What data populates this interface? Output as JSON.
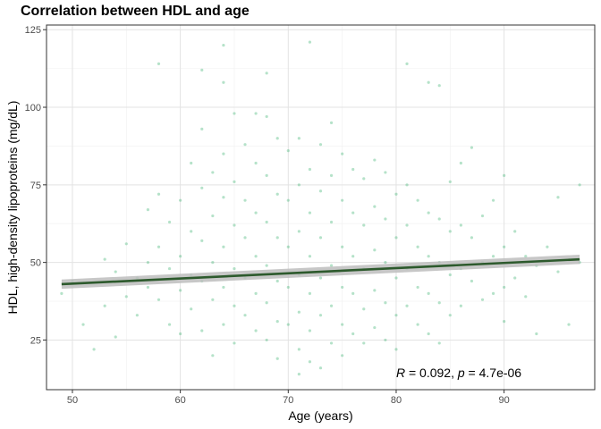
{
  "chart_data": {
    "type": "scatter",
    "title": "Correlation between HDL and age",
    "xlabel": "Age (years)",
    "ylabel": "HDL, high-density lipoproteins (mg/dL)",
    "xlim": [
      47.6,
      98.4
    ],
    "ylim": [
      9.0,
      126.5
    ],
    "x_ticks": [
      50,
      60,
      70,
      80,
      90
    ],
    "y_ticks": [
      25,
      50,
      75,
      100,
      125
    ],
    "grid": true,
    "point_color": "#3cb371",
    "line_color": "#2d5a2d",
    "band_color": "#bdbdbd",
    "regression": {
      "x": [
        49,
        97
      ],
      "y": [
        43.0,
        51.0
      ],
      "ci_low": [
        41.5,
        49.5
      ],
      "ci_high": [
        44.5,
        52.5
      ]
    },
    "annotation": {
      "r_symbol": "R",
      "r_text": " = 0.092, ",
      "p_symbol": "p",
      "p_text": " = 4.7e-06",
      "x": 80,
      "y": 14.5
    },
    "points": [
      [
        49,
        40
      ],
      [
        50,
        44
      ],
      [
        51,
        30
      ],
      [
        52,
        22
      ],
      [
        53,
        51
      ],
      [
        53,
        36
      ],
      [
        54,
        26
      ],
      [
        54,
        47
      ],
      [
        55,
        56
      ],
      [
        55,
        39
      ],
      [
        56,
        45
      ],
      [
        56,
        33
      ],
      [
        57,
        67
      ],
      [
        57,
        50
      ],
      [
        57,
        42
      ],
      [
        58,
        114
      ],
      [
        58,
        72
      ],
      [
        58,
        55
      ],
      [
        58,
        38
      ],
      [
        59,
        63
      ],
      [
        59,
        48
      ],
      [
        59,
        30
      ],
      [
        60,
        70
      ],
      [
        60,
        52
      ],
      [
        60,
        41
      ],
      [
        60,
        27
      ],
      [
        61,
        82
      ],
      [
        61,
        60
      ],
      [
        61,
        46
      ],
      [
        61,
        35
      ],
      [
        62,
        112
      ],
      [
        62,
        93
      ],
      [
        62,
        74
      ],
      [
        62,
        57
      ],
      [
        62,
        44
      ],
      [
        62,
        28
      ],
      [
        63,
        79
      ],
      [
        63,
        65
      ],
      [
        63,
        50
      ],
      [
        63,
        38
      ],
      [
        63,
        20
      ],
      [
        64,
        120
      ],
      [
        64,
        108
      ],
      [
        64,
        85
      ],
      [
        64,
        71
      ],
      [
        64,
        55
      ],
      [
        64,
        42
      ],
      [
        64,
        30
      ],
      [
        65,
        98
      ],
      [
        65,
        76
      ],
      [
        65,
        62
      ],
      [
        65,
        48
      ],
      [
        65,
        36
      ],
      [
        65,
        24
      ],
      [
        66,
        88
      ],
      [
        66,
        70
      ],
      [
        66,
        58
      ],
      [
        66,
        45
      ],
      [
        66,
        33
      ],
      [
        67,
        98
      ],
      [
        67,
        82
      ],
      [
        67,
        66
      ],
      [
        67,
        52
      ],
      [
        67,
        40
      ],
      [
        67,
        28
      ],
      [
        68,
        111
      ],
      [
        68,
        97
      ],
      [
        68,
        78
      ],
      [
        68,
        63
      ],
      [
        68,
        49
      ],
      [
        68,
        37
      ],
      [
        68,
        25
      ],
      [
        69,
        90
      ],
      [
        69,
        72
      ],
      [
        69,
        58
      ],
      [
        69,
        44
      ],
      [
        69,
        31
      ],
      [
        69,
        19
      ],
      [
        70,
        86
      ],
      [
        70,
        70
      ],
      [
        70,
        55
      ],
      [
        70,
        42
      ],
      [
        70,
        30
      ],
      [
        71,
        14
      ],
      [
        71,
        90
      ],
      [
        71,
        75
      ],
      [
        71,
        60
      ],
      [
        71,
        46
      ],
      [
        71,
        34
      ],
      [
        71,
        22
      ],
      [
        72,
        121
      ],
      [
        72,
        80
      ],
      [
        72,
        66
      ],
      [
        72,
        52
      ],
      [
        72,
        40
      ],
      [
        72,
        28
      ],
      [
        72,
        18
      ],
      [
        73,
        88
      ],
      [
        73,
        73
      ],
      [
        73,
        58
      ],
      [
        73,
        45
      ],
      [
        73,
        33
      ],
      [
        73,
        16
      ],
      [
        74,
        95
      ],
      [
        74,
        78
      ],
      [
        74,
        63
      ],
      [
        74,
        49
      ],
      [
        74,
        36
      ],
      [
        74,
        24
      ],
      [
        75,
        85
      ],
      [
        75,
        70
      ],
      [
        75,
        55
      ],
      [
        75,
        42
      ],
      [
        75,
        30
      ],
      [
        75,
        20
      ],
      [
        76,
        80
      ],
      [
        76,
        66
      ],
      [
        76,
        52
      ],
      [
        76,
        40
      ],
      [
        76,
        27
      ],
      [
        77,
        77
      ],
      [
        77,
        62
      ],
      [
        77,
        48
      ],
      [
        77,
        35
      ],
      [
        77,
        24
      ],
      [
        78,
        83
      ],
      [
        78,
        68
      ],
      [
        78,
        54
      ],
      [
        78,
        41
      ],
      [
        78,
        29
      ],
      [
        79,
        79
      ],
      [
        79,
        64
      ],
      [
        79,
        50
      ],
      [
        79,
        37
      ],
      [
        79,
        25
      ],
      [
        80,
        72
      ],
      [
        80,
        58
      ],
      [
        80,
        45
      ],
      [
        80,
        33
      ],
      [
        80,
        22
      ],
      [
        81,
        114
      ],
      [
        81,
        75
      ],
      [
        81,
        62
      ],
      [
        81,
        48
      ],
      [
        81,
        36
      ],
      [
        82,
        70
      ],
      [
        82,
        55
      ],
      [
        82,
        42
      ],
      [
        82,
        30
      ],
      [
        83,
        108
      ],
      [
        83,
        66
      ],
      [
        83,
        52
      ],
      [
        83,
        40
      ],
      [
        83,
        27
      ],
      [
        84,
        107
      ],
      [
        84,
        64
      ],
      [
        84,
        50
      ],
      [
        84,
        37
      ],
      [
        84,
        24
      ],
      [
        85,
        76
      ],
      [
        85,
        60
      ],
      [
        85,
        46
      ],
      [
        85,
        33
      ],
      [
        86,
        82
      ],
      [
        86,
        62
      ],
      [
        86,
        48
      ],
      [
        86,
        36
      ],
      [
        87,
        87
      ],
      [
        87,
        58
      ],
      [
        87,
        44
      ],
      [
        88,
        65
      ],
      [
        88,
        50
      ],
      [
        88,
        38
      ],
      [
        89,
        70
      ],
      [
        89,
        52
      ],
      [
        89,
        40
      ],
      [
        90,
        78
      ],
      [
        90,
        55
      ],
      [
        90,
        42
      ],
      [
        90,
        31
      ],
      [
        91,
        60
      ],
      [
        91,
        45
      ],
      [
        92,
        52
      ],
      [
        92,
        39
      ],
      [
        93,
        49
      ],
      [
        93,
        27
      ],
      [
        94,
        55
      ],
      [
        95,
        71
      ],
      [
        95,
        47
      ],
      [
        96,
        30
      ],
      [
        97,
        75
      ],
      [
        97,
        50
      ]
    ]
  }
}
